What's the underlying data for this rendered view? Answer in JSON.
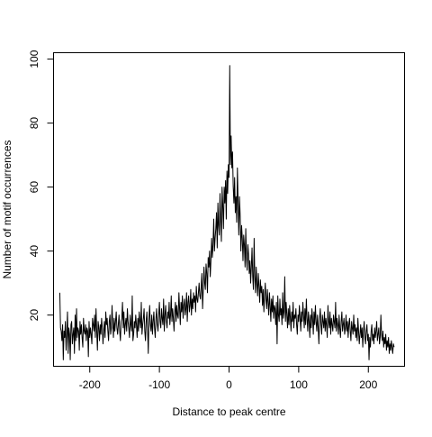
{
  "chart_data": {
    "type": "line",
    "title": "",
    "xlabel": "Distance to peak centre",
    "ylabel": "Number of motif occurrences",
    "xlim": [
      -252,
      252
    ],
    "ylim": [
      4,
      102
    ],
    "x_ticks": [
      -200,
      -100,
      0,
      100,
      200
    ],
    "y_ticks": [
      20,
      40,
      60,
      80,
      100
    ],
    "grid": false,
    "legend": "none",
    "line_color": "#000000",
    "series": [
      {
        "x_start": -243,
        "x_step": 1,
        "values": [
          27,
          16,
          15,
          12,
          17,
          6,
          15,
          13,
          18,
          9,
          14,
          21,
          8,
          16,
          14,
          6,
          17,
          18,
          11,
          14,
          16,
          8,
          20,
          12,
          22,
          13,
          16,
          15,
          9,
          18,
          14,
          17,
          13,
          10,
          19,
          15,
          14,
          17,
          12,
          16,
          15,
          7,
          18,
          13,
          16,
          14,
          11,
          19,
          17,
          15,
          20,
          13,
          22,
          15,
          9,
          18,
          16,
          12,
          17,
          14,
          19,
          16,
          11,
          15,
          18,
          13,
          21,
          17,
          19,
          15,
          12,
          18,
          20,
          14,
          16,
          23,
          17,
          13,
          19,
          15,
          18,
          21,
          16,
          14,
          17,
          20,
          15,
          12,
          18,
          19,
          24,
          16,
          21,
          14,
          17,
          19,
          15,
          22,
          18,
          16,
          13,
          20,
          17,
          15,
          26,
          12,
          14,
          18,
          16,
          20,
          17,
          13,
          19,
          15,
          21,
          18,
          16,
          24,
          14,
          17,
          19,
          22,
          15,
          12,
          18,
          21,
          16,
          8,
          19,
          23,
          17,
          15,
          20,
          14,
          18,
          21,
          16,
          13,
          19,
          22,
          17,
          15,
          20,
          24,
          18,
          16,
          22,
          19,
          17,
          25,
          15,
          20,
          23,
          18,
          16,
          21,
          19,
          24,
          17,
          20,
          26,
          18,
          22,
          19,
          15,
          21,
          24,
          18,
          23,
          20,
          19,
          27,
          22,
          17,
          24,
          21,
          26,
          19,
          23,
          25,
          20,
          22,
          27,
          18,
          24,
          26,
          21,
          23,
          28,
          20,
          25,
          22,
          27,
          24,
          26,
          21,
          29,
          25,
          24,
          27,
          30,
          26,
          25,
          29,
          33,
          22,
          28,
          35,
          30,
          28,
          36,
          33,
          27,
          38,
          35,
          40,
          32,
          37,
          44,
          38,
          42,
          50,
          40,
          44,
          47,
          52,
          41,
          55,
          48,
          45,
          58,
          50,
          43,
          60,
          54,
          47,
          60,
          55,
          62,
          50,
          65,
          58,
          67,
          63,
          98,
          67,
          76,
          66,
          71,
          60,
          55,
          63,
          52,
          57,
          49,
          66,
          55,
          45,
          57,
          51,
          40,
          48,
          44,
          37,
          45,
          42,
          35,
          47,
          38,
          34,
          42,
          39,
          33,
          37,
          30,
          35,
          41,
          32,
          28,
          44,
          32,
          27,
          35,
          30,
          26,
          33,
          29,
          24,
          31,
          27,
          29,
          23,
          28,
          21,
          26,
          30,
          25,
          22,
          28,
          24,
          20,
          27,
          23,
          18,
          25,
          21,
          26,
          19,
          23,
          22,
          17,
          24,
          11,
          26,
          20,
          18,
          25,
          20,
          22,
          17,
          27,
          19,
          21,
          32,
          18,
          24,
          20,
          16,
          22,
          17,
          23,
          19,
          15,
          21,
          18,
          24,
          16,
          20,
          19,
          22,
          17,
          14,
          20,
          18,
          23,
          19,
          15,
          21,
          18,
          24,
          20,
          16,
          22,
          17,
          25,
          19,
          15,
          21,
          18,
          13,
          20,
          16,
          22,
          19,
          14,
          21,
          17,
          23,
          18,
          15,
          20,
          16,
          11,
          19,
          22,
          17,
          14,
          20,
          18,
          16,
          21,
          15,
          19,
          17,
          13,
          23,
          18,
          16,
          21,
          14,
          19,
          17,
          15,
          20,
          18,
          16,
          24,
          15,
          19,
          17,
          14,
          20,
          16,
          13,
          18,
          21,
          15,
          17,
          19,
          14,
          16,
          20,
          15,
          18,
          13,
          17,
          19,
          15,
          12,
          18,
          16,
          14,
          20,
          15,
          17,
          13,
          16,
          12,
          19,
          15,
          11,
          14,
          17,
          13,
          16,
          10,
          15,
          18,
          13,
          11,
          15,
          17,
          12,
          14,
          6,
          13,
          10,
          15,
          17,
          12,
          14,
          11,
          16,
          13,
          15,
          18,
          12,
          14,
          16,
          11,
          13,
          20,
          14,
          12,
          15,
          10,
          13,
          11,
          14,
          9,
          12,
          10,
          13,
          8,
          11,
          9,
          12,
          10,
          8,
          11,
          10
        ]
      }
    ]
  }
}
